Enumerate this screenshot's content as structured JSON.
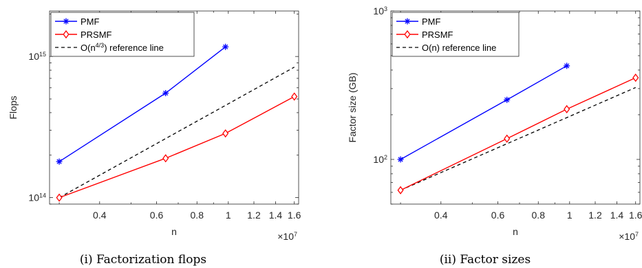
{
  "colors": {
    "pmf": "#0000ff",
    "prsmf": "#ff0000",
    "reference": "#000000",
    "axis": "#262626"
  },
  "chart_data": [
    {
      "type": "line",
      "xscale": "log",
      "yscale": "log",
      "xlabel": "n",
      "ylabel": "Flops",
      "x_exponent_label": "×10",
      "x_exponent_power": "7",
      "xlim": [
        0.28,
        1.65
      ],
      "ylim": [
        90000000000000.0,
        2100000000000000.0
      ],
      "xticks": [
        0.4,
        0.6,
        0.8,
        1.0,
        1.2,
        1.4,
        1.6
      ],
      "xtick_labels": [
        "0.4",
        "0.6",
        "0.8",
        "1",
        "1.2",
        "1.4",
        "1.6"
      ],
      "yticks_major": [
        100000000000000.0,
        1000000000000000.0
      ],
      "ytick_labels": [
        {
          "base": "10",
          "power": "14"
        },
        {
          "base": "10",
          "power": "15"
        }
      ],
      "grid": false,
      "legend_position": "top-left",
      "caption": "(i) Factorization flops",
      "series": [
        {
          "name": "PMF",
          "marker": "asterisk",
          "x": [
            0.3,
            0.64,
            0.98
          ],
          "y": [
            180000000000000.0,
            550000000000000.0,
            1170000000000000.0
          ]
        },
        {
          "name": "PRSMF",
          "marker": "diamond",
          "x": [
            0.3,
            0.64,
            0.98,
            1.6
          ],
          "y": [
            100000000000000.0,
            190000000000000.0,
            285000000000000.0,
            520000000000000.0
          ]
        }
      ],
      "reference": {
        "name_prefix": "O(n",
        "name_power": "4/3",
        "name_suffix": ") reference line",
        "x": [
          0.3,
          1.6
        ],
        "y": [
          100000000000000.0,
          840000000000000.0
        ]
      }
    },
    {
      "type": "line",
      "xscale": "log",
      "yscale": "log",
      "xlabel": "n",
      "ylabel": "Factor size (GB)",
      "x_exponent_label": "×10",
      "x_exponent_power": "7",
      "xlim": [
        0.28,
        1.65
      ],
      "ylim": [
        50,
        1000
      ],
      "xticks": [
        0.4,
        0.6,
        0.8,
        1.0,
        1.2,
        1.4,
        1.6
      ],
      "xtick_labels": [
        "0.4",
        "0.6",
        "0.8",
        "1",
        "1.2",
        "1.4",
        "1.6"
      ],
      "yticks_major": [
        100,
        1000
      ],
      "ytick_labels": [
        {
          "base": "10",
          "power": "2"
        },
        {
          "base": "10",
          "power": "3"
        }
      ],
      "grid": false,
      "legend_position": "top-left",
      "caption": "(ii) Factor sizes",
      "series": [
        {
          "name": "PMF",
          "marker": "asterisk",
          "x": [
            0.3,
            0.64,
            0.98
          ],
          "y": [
            100,
            252,
            427
          ]
        },
        {
          "name": "PRSMF",
          "marker": "diamond",
          "x": [
            0.3,
            0.64,
            0.98,
            1.6
          ],
          "y": [
            62,
            138,
            218,
            355
          ]
        }
      ],
      "reference": {
        "name_prefix": "O(n) reference line",
        "name_power": "",
        "name_suffix": "",
        "x": [
          0.3,
          1.6
        ],
        "y": [
          62,
          305
        ]
      }
    }
  ]
}
